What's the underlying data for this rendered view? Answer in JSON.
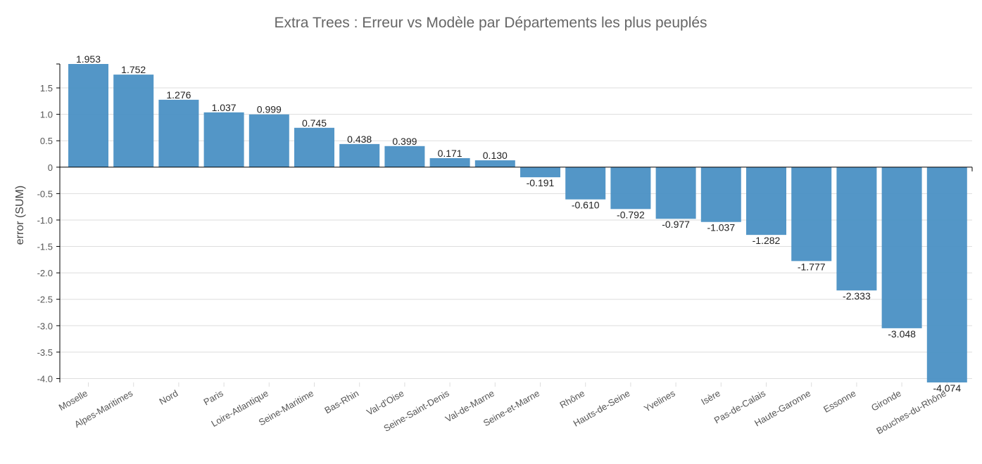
{
  "chart_data": {
    "type": "bar",
    "title": "Extra Trees  : Erreur vs Modèle par Départements les plus peuplés",
    "xlabel": "",
    "ylabel": "error (SUM)",
    "ylim": [
      -4.074,
      1.953
    ],
    "yticks": [
      -4.0,
      -3.5,
      -3.0,
      -2.5,
      -2.0,
      -1.5,
      -1.0,
      -0.5,
      0,
      0.5,
      1.0,
      1.5
    ],
    "ytick_labels": [
      "-4.0",
      "-3.5",
      "-3.0",
      "-2.5",
      "-2.0",
      "-1.5",
      "-1.0",
      "-0.5",
      "0",
      "0.5",
      "1.0",
      "1.5"
    ],
    "grid": true,
    "bar_color": "#4a90c4",
    "categories": [
      "Moselle",
      "Alpes-Maritimes",
      "Nord",
      "Paris",
      "Loire-Atlantique",
      "Seine-Maritime",
      "Bas-Rhin",
      "Val-d'Oise",
      "Seine-Saint-Denis",
      "Val-de-Marne",
      "Seine-et-Marne",
      "Rhône",
      "Hauts-de-Seine",
      "Yvelines",
      "Isère",
      "Pas-de-Calais",
      "Haute-Garonne",
      "Essonne",
      "Gironde",
      "Bouches-du-Rhône"
    ],
    "values": [
      1.953,
      1.752,
      1.276,
      1.037,
      0.999,
      0.745,
      0.438,
      0.399,
      0.171,
      0.13,
      -0.191,
      -0.61,
      -0.792,
      -0.977,
      -1.037,
      -1.282,
      -1.777,
      -2.333,
      -3.048,
      -4.074
    ],
    "value_labels": [
      "1.953",
      "1.752",
      "1.276",
      "1.037",
      "0.999",
      "0.745",
      "0.438",
      "0.399",
      "0.171",
      "0.130",
      "-0.191",
      "-0.610",
      "-0.792",
      "-0.977",
      "-1.037",
      "-1.282",
      "-1.777",
      "-2.333",
      "-3.048",
      "-4.074"
    ]
  }
}
